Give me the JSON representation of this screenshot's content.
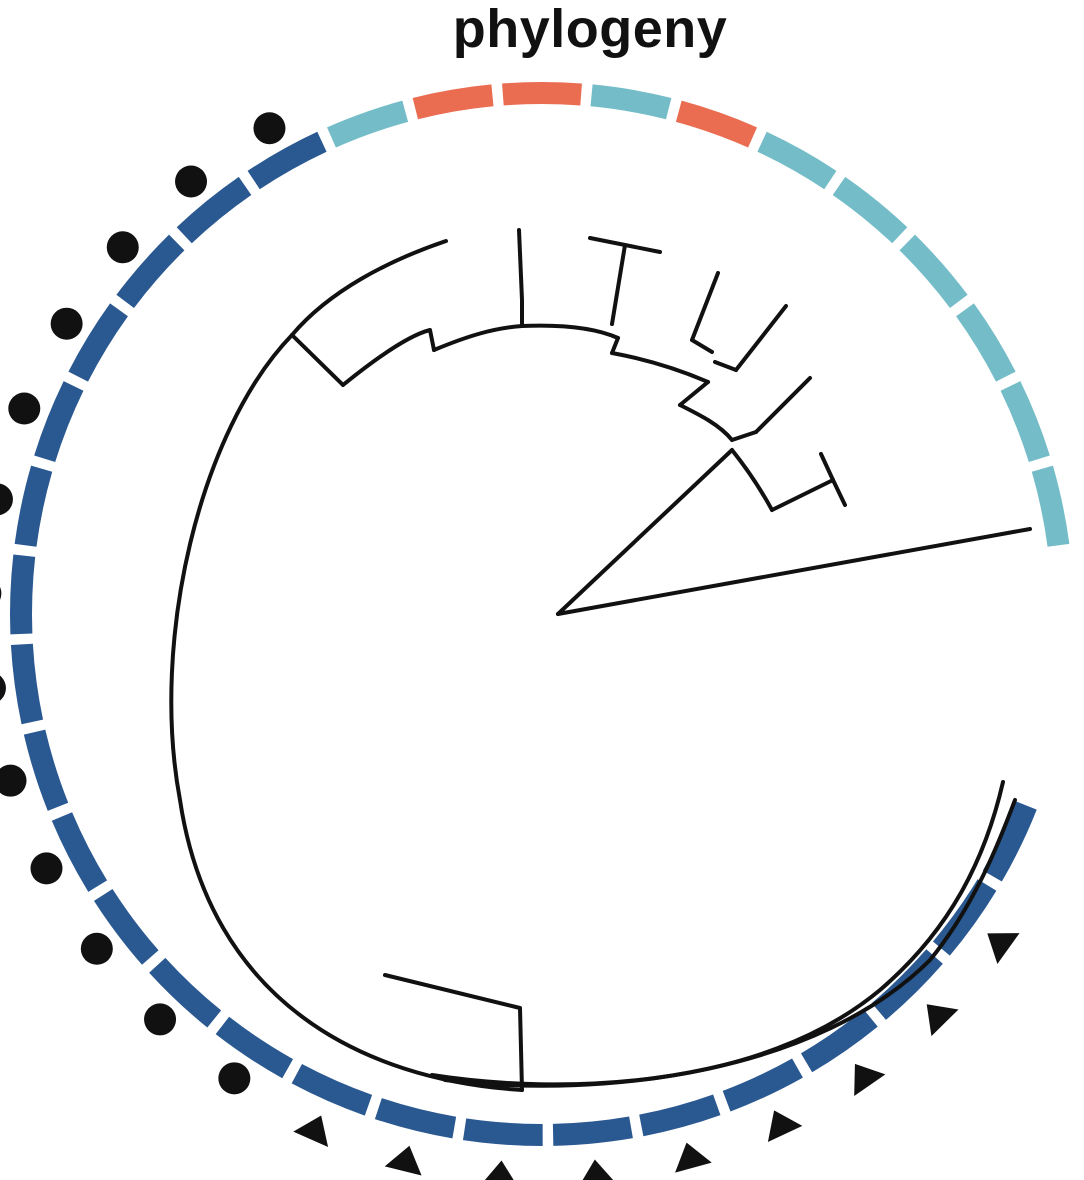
{
  "title": "phylogeny",
  "colors": {
    "dark_blue": "#2a5891",
    "light_blue": "#74bdc8",
    "salmon": "#ea6d52",
    "tree": "#111111",
    "marker": "#111111"
  },
  "ring_segments": [
    {
      "group": "light_blue"
    },
    {
      "group": "light_blue"
    },
    {
      "group": "light_blue"
    },
    {
      "group": "light_blue"
    },
    {
      "group": "light_blue"
    },
    {
      "group": "light_blue"
    },
    {
      "group": "salmon"
    },
    {
      "group": "light_blue"
    },
    {
      "group": "salmon"
    },
    {
      "group": "salmon"
    },
    {
      "group": "light_blue"
    },
    {
      "group": "dark_blue",
      "marker": "circle"
    },
    {
      "group": "dark_blue",
      "marker": "circle"
    },
    {
      "group": "dark_blue",
      "marker": "circle"
    },
    {
      "group": "dark_blue",
      "marker": "circle"
    },
    {
      "group": "dark_blue",
      "marker": "circle"
    },
    {
      "group": "dark_blue",
      "marker": "circle"
    },
    {
      "group": "dark_blue",
      "marker": "circle"
    },
    {
      "group": "dark_blue",
      "marker": "circle"
    },
    {
      "group": "dark_blue",
      "marker": "circle"
    },
    {
      "group": "dark_blue",
      "marker": "circle"
    },
    {
      "group": "dark_blue",
      "marker": "circle"
    },
    {
      "group": "dark_blue",
      "marker": "circle"
    },
    {
      "group": "dark_blue",
      "marker": "circle"
    },
    {
      "group": "dark_blue",
      "marker": "triangle"
    },
    {
      "group": "dark_blue",
      "marker": "triangle"
    },
    {
      "group": "dark_blue",
      "marker": "triangle"
    },
    {
      "group": "dark_blue",
      "marker": "triangle"
    },
    {
      "group": "dark_blue",
      "marker": "triangle"
    },
    {
      "group": "dark_blue",
      "marker": "triangle"
    },
    {
      "group": "dark_blue",
      "marker": "triangle"
    },
    {
      "group": "dark_blue",
      "marker": "triangle"
    },
    {
      "group": "dark_blue",
      "marker": "triangle"
    },
    {
      "group": "dark_blue",
      "marker": "none"
    }
  ]
}
